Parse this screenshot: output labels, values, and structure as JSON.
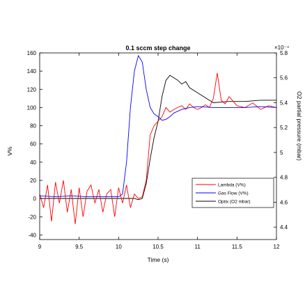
{
  "chart_data": {
    "type": "line",
    "title": "0.1 sccm step change",
    "xlabel": "Time (s)",
    "ylabel_left": "V%",
    "ylabel_right": "O2 partial pressure (mbar)",
    "right_exponent": "×10⁻⁴",
    "xlim": [
      9,
      12
    ],
    "ylim_left": [
      -45,
      160
    ],
    "ylim_right": [
      4.3,
      5.8
    ],
    "x_ticks": [
      "9",
      "9.5",
      "10",
      "10.5",
      "11",
      "11.5",
      "12"
    ],
    "y_left_ticks": [
      "-40",
      "-20",
      "0",
      "20",
      "40",
      "60",
      "80",
      "100",
      "120",
      "140",
      "160"
    ],
    "y_right_ticks": [
      "4.4",
      "4.6",
      "4.8",
      "5",
      "5.2",
      "5.4",
      "5.6",
      "5.8"
    ],
    "legend_position": "lower-right",
    "series": [
      {
        "name": "Lambda (V%)",
        "axis": "left",
        "color": "#ff0000",
        "x": [
          9.0,
          9.05,
          9.1,
          9.15,
          9.2,
          9.25,
          9.3,
          9.35,
          9.4,
          9.45,
          9.5,
          9.55,
          9.6,
          9.65,
          9.7,
          9.75,
          9.8,
          9.85,
          9.9,
          9.95,
          10.0,
          10.05,
          10.1,
          10.15,
          10.2,
          10.25,
          10.3,
          10.35,
          10.4,
          10.45,
          10.5,
          10.55,
          10.6,
          10.65,
          10.7,
          10.75,
          10.8,
          10.85,
          10.9,
          10.95,
          11.0,
          11.05,
          11.1,
          11.15,
          11.2,
          11.25,
          11.3,
          11.35,
          11.4,
          11.5,
          11.6,
          11.7,
          11.8,
          11.9,
          12.0
        ],
        "y": [
          5,
          -10,
          15,
          -25,
          18,
          -5,
          20,
          -15,
          10,
          -28,
          12,
          -20,
          8,
          15,
          -5,
          10,
          -15,
          5,
          10,
          -20,
          12,
          -5,
          15,
          -10,
          5,
          0,
          2,
          20,
          70,
          80,
          85,
          90,
          100,
          95,
          98,
          100,
          102,
          98,
          104,
          100,
          98,
          100,
          103,
          100,
          110,
          138,
          108,
          104,
          112,
          102,
          100,
          105,
          98,
          102,
          100
        ]
      },
      {
        "name": "Gas Flow (V%)",
        "axis": "left",
        "color": "#0000ff",
        "x": [
          9.0,
          9.2,
          9.4,
          9.6,
          9.8,
          10.0,
          10.05,
          10.1,
          10.15,
          10.2,
          10.25,
          10.3,
          10.35,
          10.4,
          10.45,
          10.5,
          10.55,
          10.6,
          10.65,
          10.7,
          10.8,
          10.9,
          11.0,
          11.2,
          11.4,
          11.6,
          11.8,
          12.0
        ],
        "y": [
          3,
          2,
          3,
          2,
          2,
          2,
          5,
          40,
          100,
          140,
          157,
          150,
          120,
          100,
          93,
          90,
          86,
          87,
          90,
          94,
          98,
          100,
          101,
          100,
          100,
          100,
          101,
          100
        ]
      },
      {
        "name": "Optix (O2 mbar)",
        "axis": "right",
        "color": "#000000",
        "x": [
          9.0,
          9.5,
          10.0,
          10.2,
          10.25,
          10.3,
          10.35,
          10.4,
          10.45,
          10.5,
          10.55,
          10.6,
          10.65,
          10.7,
          10.75,
          10.8,
          10.85,
          10.9,
          11.0,
          11.2,
          11.4,
          11.6,
          11.8,
          12.0
        ],
        "y": [
          4.63,
          4.63,
          4.63,
          4.63,
          4.62,
          4.63,
          4.75,
          4.95,
          5.12,
          5.25,
          5.45,
          5.58,
          5.62,
          5.6,
          5.58,
          5.55,
          5.57,
          5.52,
          5.48,
          5.4,
          5.41,
          5.41,
          5.42,
          5.42
        ]
      }
    ]
  }
}
